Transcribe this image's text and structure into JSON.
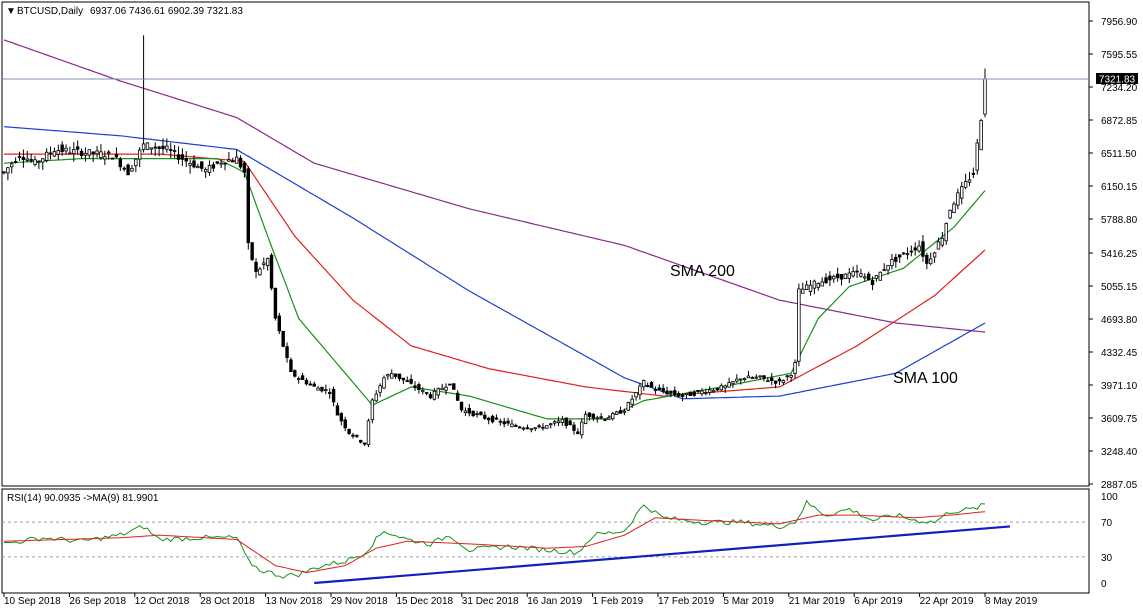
{
  "header": {
    "symbol": "BTCUSD,Daily",
    "ohlc": "6937.06 7436.61 6902.39 7321.83"
  },
  "price_tag": "7321.83",
  "annotations": {
    "sma200": "SMA 200",
    "sma100": "SMA 100"
  },
  "rsi_header": "RSI(14) 90.0935  ->MA(9) 81.9901",
  "colors": {
    "candle": "#000000",
    "sma20": "#1a8f1a",
    "sma50": "#e02020",
    "sma100": "#1f3fd0",
    "sma200": "#8a2a8a",
    "rsi_line": "#1a8f1a",
    "rsi_ma": "#e02020",
    "trendline": "#1020c0",
    "price_line": "#7f8fb0"
  },
  "chart_data": [
    {
      "type": "candlestick",
      "title": "BTCUSD,Daily",
      "x_ticks": [
        "10 Sep 2018",
        "26 Sep 2018",
        "12 Oct 2018",
        "28 Oct 2018",
        "13 Nov 2018",
        "29 Nov 2018",
        "15 Dec 2018",
        "31 Dec 2018",
        "16 Jan 2019",
        "1 Feb 2019",
        "17 Feb 2019",
        "5 Mar 2019",
        "21 Mar 2019",
        "6 Apr 2019",
        "22 Apr 2019",
        "8 May 2019"
      ],
      "y_ticks": [
        "7956.90",
        "7595.55",
        "7234.20",
        "6872.85",
        "6511.50",
        "6150.15",
        "5788.80",
        "5416.25",
        "5055.15",
        "4693.80",
        "4332.45",
        "3971.10",
        "3609.75",
        "3248.40",
        "2887.05"
      ],
      "ylim": [
        2887.05,
        7956.9
      ],
      "last_price": 7321.83,
      "close_keypoints": [
        [
          0,
          6300
        ],
        [
          4,
          6500
        ],
        [
          8,
          6400
        ],
        [
          13,
          6550
        ],
        [
          20,
          6520
        ],
        [
          28,
          6490
        ],
        [
          32,
          6300
        ],
        [
          36,
          6600
        ],
        [
          42,
          6550
        ],
        [
          46,
          6450
        ],
        [
          52,
          6320
        ],
        [
          56,
          6420
        ],
        [
          60,
          6450
        ],
        [
          62,
          6300
        ],
        [
          63,
          5500
        ],
        [
          65,
          5200
        ],
        [
          68,
          5350
        ],
        [
          70,
          4700
        ],
        [
          72,
          4400
        ],
        [
          74,
          4100
        ],
        [
          76,
          4050
        ],
        [
          80,
          3950
        ],
        [
          84,
          3900
        ],
        [
          86,
          3650
        ],
        [
          89,
          3450
        ],
        [
          93,
          3330
        ],
        [
          95,
          3800
        ],
        [
          98,
          4050
        ],
        [
          100,
          4100
        ],
        [
          104,
          4000
        ],
        [
          110,
          3850
        ],
        [
          115,
          4000
        ],
        [
          118,
          3700
        ],
        [
          125,
          3600
        ],
        [
          132,
          3520
        ],
        [
          138,
          3500
        ],
        [
          144,
          3580
        ],
        [
          148,
          3450
        ],
        [
          150,
          3650
        ],
        [
          155,
          3600
        ],
        [
          160,
          3700
        ],
        [
          165,
          4000
        ],
        [
          168,
          3920
        ],
        [
          175,
          3850
        ],
        [
          180,
          3900
        ],
        [
          186,
          3950
        ],
        [
          190,
          4050
        ],
        [
          195,
          4050
        ],
        [
          200,
          4000
        ],
        [
          203,
          4100
        ],
        [
          204,
          4200
        ],
        [
          205,
          5000
        ],
        [
          210,
          5100
        ],
        [
          215,
          5150
        ],
        [
          220,
          5200
        ],
        [
          224,
          5100
        ],
        [
          228,
          5300
        ],
        [
          232,
          5400
        ],
        [
          236,
          5500
        ],
        [
          238,
          5300
        ],
        [
          242,
          5600
        ],
        [
          244,
          5900
        ],
        [
          246,
          6050
        ],
        [
          250,
          6300
        ],
        [
          252,
          6900
        ],
        [
          253,
          7321.83
        ]
      ],
      "events": {
        "wick_high_index": 36,
        "wick_high_value": 7800
      },
      "series": [
        {
          "name": "SMA 200",
          "keypoints": [
            [
              0,
              7750
            ],
            [
              30,
              7300
            ],
            [
              60,
              6900
            ],
            [
              80,
              6400
            ],
            [
              120,
              5900
            ],
            [
              160,
              5500
            ],
            [
              200,
              4900
            ],
            [
              230,
              4650
            ],
            [
              253,
              4550
            ]
          ]
        },
        {
          "name": "SMA 100",
          "keypoints": [
            [
              0,
              6800
            ],
            [
              30,
              6700
            ],
            [
              60,
              6550
            ],
            [
              90,
              5800
            ],
            [
              120,
              5000
            ],
            [
              160,
              4050
            ],
            [
              175,
              3820
            ],
            [
              200,
              3850
            ],
            [
              230,
              4100
            ],
            [
              253,
              4650
            ]
          ]
        },
        {
          "name": "",
          "keypoints": [
            [
              0,
              6500
            ],
            [
              40,
              6500
            ],
            [
              62,
              6420
            ],
            [
              75,
              5600
            ],
            [
              90,
              4900
            ],
            [
              105,
              4400
            ],
            [
              125,
              4150
            ],
            [
              150,
              3950
            ],
            [
              170,
              3850
            ],
            [
              200,
              3950
            ],
            [
              220,
              4400
            ],
            [
              240,
              4950
            ],
            [
              253,
              5450
            ]
          ]
        },
        {
          "name": "",
          "keypoints": [
            [
              0,
              6400
            ],
            [
              20,
              6450
            ],
            [
              55,
              6450
            ],
            [
              62,
              6300
            ],
            [
              68,
              5600
            ],
            [
              76,
              4700
            ],
            [
              86,
              4200
            ],
            [
              95,
              3750
            ],
            [
              105,
              3950
            ],
            [
              120,
              3850
            ],
            [
              140,
              3600
            ],
            [
              155,
              3600
            ],
            [
              165,
              3800
            ],
            [
              185,
              3950
            ],
            [
              203,
              4100
            ],
            [
              210,
              4700
            ],
            [
              218,
              5050
            ],
            [
              232,
              5250
            ],
            [
              245,
              5700
            ],
            [
              253,
              6100
            ]
          ]
        }
      ]
    },
    {
      "type": "line",
      "title": "RSI(14) 90.0935  ->MA(9) 81.9901",
      "y_ticks": [
        "100",
        "70",
        "30",
        "0"
      ],
      "ylim": [
        0,
        100
      ],
      "levels": [
        70,
        30
      ],
      "series": [
        {
          "name": "RSI(14)",
          "keypoints": [
            [
              0,
              45
            ],
            [
              10,
              52
            ],
            [
              20,
              48
            ],
            [
              30,
              55
            ],
            [
              36,
              65
            ],
            [
              40,
              50
            ],
            [
              50,
              52
            ],
            [
              60,
              52
            ],
            [
              63,
              25
            ],
            [
              66,
              15
            ],
            [
              72,
              8
            ],
            [
              76,
              10
            ],
            [
              82,
              20
            ],
            [
              88,
              25
            ],
            [
              93,
              35
            ],
            [
              98,
              60
            ],
            [
              104,
              50
            ],
            [
              110,
              45
            ],
            [
              115,
              55
            ],
            [
              120,
              38
            ],
            [
              130,
              42
            ],
            [
              140,
              38
            ],
            [
              148,
              35
            ],
            [
              152,
              55
            ],
            [
              160,
              60
            ],
            [
              165,
              90
            ],
            [
              170,
              75
            ],
            [
              180,
              70
            ],
            [
              190,
              70
            ],
            [
              200,
              65
            ],
            [
              204,
              70
            ],
            [
              207,
              92
            ],
            [
              212,
              78
            ],
            [
              218,
              85
            ],
            [
              224,
              72
            ],
            [
              230,
              78
            ],
            [
              235,
              72
            ],
            [
              240,
              70
            ],
            [
              244,
              82
            ],
            [
              250,
              85
            ],
            [
              253,
              90
            ]
          ]
        },
        {
          "name": "MA(9)",
          "keypoints": [
            [
              0,
              48
            ],
            [
              30,
              52
            ],
            [
              40,
              55
            ],
            [
              60,
              50
            ],
            [
              64,
              38
            ],
            [
              70,
              20
            ],
            [
              78,
              12
            ],
            [
              88,
              20
            ],
            [
              96,
              40
            ],
            [
              104,
              48
            ],
            [
              120,
              45
            ],
            [
              140,
              40
            ],
            [
              150,
              42
            ],
            [
              160,
              55
            ],
            [
              168,
              75
            ],
            [
              180,
              72
            ],
            [
              200,
              68
            ],
            [
              210,
              78
            ],
            [
              220,
              78
            ],
            [
              235,
              75
            ],
            [
              244,
              78
            ],
            [
              253,
              82
            ]
          ]
        }
      ],
      "trendline": {
        "start": [
          80,
          0
        ],
        "end": [
          253,
          65
        ]
      }
    }
  ]
}
